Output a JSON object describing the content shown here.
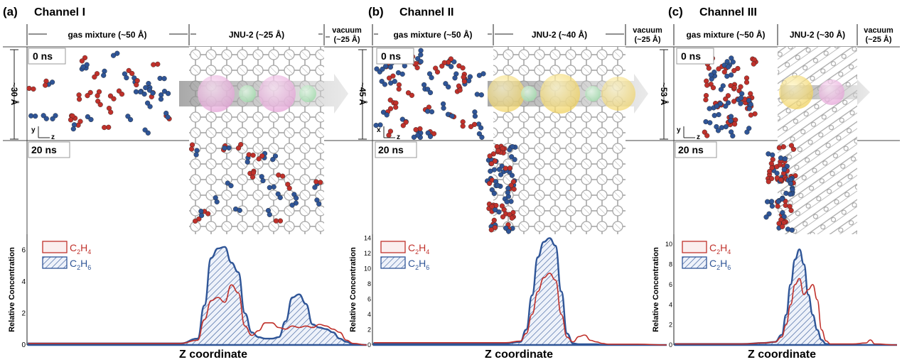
{
  "panels": [
    {
      "letter": "(a)",
      "title": "Channel I",
      "regions": [
        "gas mixture (~50 Å)",
        "JNU-2 (~25 Å)",
        "vacuum",
        "(~25 Å)"
      ],
      "side_label": "~30 Å",
      "axis_a": "y",
      "axis_b": "z",
      "time_top": "0 ns",
      "time_bottom": "20 ns",
      "ylabel": "Relative Concentration",
      "xlabel": "Z coordinate",
      "ticks": [
        "0",
        "2",
        "4",
        "6"
      ],
      "legend": [
        {
          "main": "C",
          "sub1": "2",
          "mid": "H",
          "sub2": "4"
        },
        {
          "main": "C",
          "sub1": "2",
          "mid": "H",
          "sub2": "6"
        }
      ]
    },
    {
      "letter": "(b)",
      "title": "Channel II",
      "regions": [
        "gas mixture (~50 Å)",
        "JNU-2 (~40 Å)",
        "vacuum",
        "(~25 Å)"
      ],
      "side_label": "~45 Å",
      "axis_a": "x",
      "axis_b": "z",
      "time_top": "0 ns",
      "time_bottom": "20 ns",
      "ylabel": "Relative Concentration",
      "xlabel": "Z coordinate",
      "ticks": [
        "0",
        "2",
        "4",
        "6",
        "8",
        "10",
        "12",
        "14"
      ],
      "legend": [
        {
          "main": "C",
          "sub1": "2",
          "mid": "H",
          "sub2": "4"
        },
        {
          "main": "C",
          "sub1": "2",
          "mid": "H",
          "sub2": "6"
        }
      ]
    },
    {
      "letter": "(c)",
      "title": "Channel III",
      "regions": [
        "gas mixture (~50 Å)",
        "JNU-2 (~30 Å)",
        "vacuum",
        "(~25 Å)"
      ],
      "side_label": "~53 Å",
      "axis_a": "y",
      "axis_b": "z",
      "time_top": "0 ns",
      "time_bottom": "20 ns",
      "ylabel": "Relative Concentration",
      "xlabel": "Z coordinate",
      "ticks": [
        "0",
        "2",
        "4",
        "6",
        "8",
        "10"
      ],
      "legend": [
        {
          "main": "C",
          "sub1": "2",
          "mid": "H",
          "sub2": "4"
        },
        {
          "main": "C",
          "sub1": "2",
          "mid": "H",
          "sub2": "6"
        }
      ]
    }
  ],
  "colors": {
    "c2h4": "#c0312b",
    "c2h6": "#2f5597",
    "pore_pink": "#e8a4d8",
    "pore_green": "#a8e0b0",
    "pore_yellow": "#f0d060",
    "framework": "#9a9a9a"
  },
  "chart_data": [
    {
      "type": "area",
      "xlabel": "Z coordinate",
      "ylabel": "Relative Concentration",
      "ylim": [
        0,
        7
      ],
      "x": [
        0,
        10,
        20,
        30,
        40,
        45,
        50,
        52,
        54,
        56,
        58,
        60,
        62,
        64,
        66,
        68,
        70,
        72,
        74,
        76,
        78,
        80,
        82,
        84,
        86,
        88,
        90,
        92,
        94,
        96,
        100
      ],
      "series": [
        {
          "name": "C2H4",
          "values": [
            0.1,
            0.1,
            0.1,
            0.1,
            0.1,
            0.1,
            0.3,
            1.6,
            2.8,
            3.0,
            2.7,
            3.8,
            3.3,
            1.2,
            0.6,
            0.9,
            1.4,
            1.4,
            1.1,
            1.0,
            1.2,
            1.1,
            1.2,
            1.1,
            1.3,
            1.2,
            1.0,
            0.8,
            0.3,
            0.1,
            0.0
          ]
        },
        {
          "name": "C2H6",
          "values": [
            0.1,
            0.1,
            0.1,
            0.1,
            0.1,
            0.1,
            0.4,
            2.5,
            5.5,
            6.1,
            6.2,
            5.2,
            4.6,
            2.0,
            0.8,
            0.5,
            0.4,
            0.4,
            0.5,
            1.5,
            3.0,
            3.2,
            2.6,
            1.3,
            1.1,
            1.0,
            0.8,
            0.4,
            0.2,
            0.05,
            0.0
          ]
        }
      ]
    },
    {
      "type": "area",
      "xlabel": "Z coordinate",
      "ylabel": "Relative Concentration",
      "ylim": [
        0,
        14.5
      ],
      "x": [
        0,
        10,
        20,
        30,
        40,
        45,
        50,
        52,
        54,
        56,
        58,
        60,
        62,
        64,
        66,
        68,
        70,
        72,
        74,
        76,
        78,
        80,
        85,
        90,
        100
      ],
      "series": [
        {
          "name": "C2H4",
          "values": [
            0.3,
            0.3,
            0.3,
            0.3,
            0.3,
            0.3,
            0.5,
            1.5,
            4.0,
            7.0,
            8.8,
            9.4,
            8.5,
            4.0,
            1.0,
            0.4,
            1.1,
            1.3,
            0.6,
            0.4,
            0.2,
            0.1,
            0.1,
            0.1,
            0.0
          ]
        },
        {
          "name": "C2H6",
          "values": [
            0.2,
            0.2,
            0.2,
            0.2,
            0.2,
            0.2,
            0.4,
            2.0,
            6.5,
            11.5,
            13.5,
            14.0,
            13.0,
            7.0,
            1.5,
            0.2,
            0.1,
            0.1,
            0.1,
            0.1,
            0.0,
            0.0,
            0.0,
            0.0,
            0.0
          ]
        }
      ]
    },
    {
      "type": "area",
      "xlabel": "Z coordinate",
      "ylabel": "Relative Concentration",
      "ylim": [
        0,
        11
      ],
      "x": [
        0,
        10,
        20,
        30,
        40,
        45,
        48,
        50,
        52,
        54,
        56,
        58,
        60,
        62,
        64,
        66,
        68,
        70,
        72,
        74,
        76,
        80,
        86,
        88,
        90,
        100
      ],
      "series": [
        {
          "name": "C2H4",
          "values": [
            0.1,
            0.1,
            0.1,
            0.1,
            0.2,
            0.3,
            0.8,
            2.0,
            4.0,
            6.0,
            6.6,
            5.0,
            5.5,
            6.0,
            4.5,
            1.5,
            0.4,
            0.1,
            0.1,
            0.1,
            0.1,
            0.1,
            0.2,
            0.5,
            0.1,
            0.0
          ]
        },
        {
          "name": "C2H6",
          "values": [
            0.1,
            0.1,
            0.1,
            0.1,
            0.2,
            0.3,
            1.0,
            3.0,
            6.0,
            8.5,
            9.5,
            8.0,
            5.0,
            3.0,
            1.5,
            0.5,
            0.1,
            0.05,
            0.0,
            0.0,
            0.0,
            0.0,
            0.0,
            0.0,
            0.0,
            0.0
          ]
        }
      ]
    }
  ]
}
